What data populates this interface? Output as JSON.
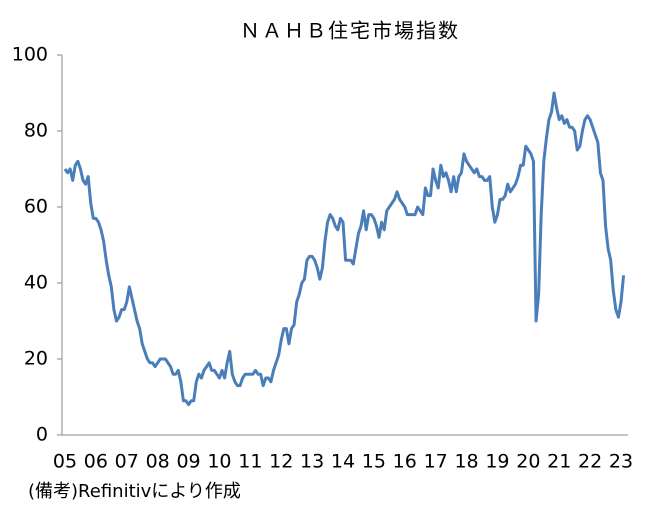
{
  "chart_data": {
    "type": "line",
    "title": "ＮＡＨＢ住宅市場指数",
    "note": "(備考)Refinitivにより作成",
    "color": "#4a7ebb",
    "ylim": [
      0,
      100
    ],
    "yticks": [
      0,
      20,
      40,
      60,
      80,
      100
    ],
    "categories": [
      "05",
      null,
      null,
      null,
      null,
      null,
      null,
      null,
      null,
      null,
      null,
      null,
      "06",
      null,
      null,
      null,
      null,
      null,
      null,
      null,
      null,
      null,
      null,
      null,
      "07",
      null,
      null,
      null,
      null,
      null,
      null,
      null,
      null,
      null,
      null,
      null,
      "08",
      null,
      null,
      null,
      null,
      null,
      null,
      null,
      null,
      null,
      null,
      null,
      "09",
      null,
      null,
      null,
      null,
      null,
      null,
      null,
      null,
      null,
      null,
      null,
      "10",
      null,
      null,
      null,
      null,
      null,
      null,
      null,
      null,
      null,
      null,
      null,
      "11",
      null,
      null,
      null,
      null,
      null,
      null,
      null,
      null,
      null,
      null,
      null,
      "12",
      null,
      null,
      null,
      null,
      null,
      null,
      null,
      null,
      null,
      null,
      null,
      "13",
      null,
      null,
      null,
      null,
      null,
      null,
      null,
      null,
      null,
      null,
      null,
      "14",
      null,
      null,
      null,
      null,
      null,
      null,
      null,
      null,
      null,
      null,
      null,
      "15",
      null,
      null,
      null,
      null,
      null,
      null,
      null,
      null,
      null,
      null,
      null,
      "16",
      null,
      null,
      null,
      null,
      null,
      null,
      null,
      null,
      null,
      null,
      null,
      "17",
      null,
      null,
      null,
      null,
      null,
      null,
      null,
      null,
      null,
      null,
      null,
      "18",
      null,
      null,
      null,
      null,
      null,
      null,
      null,
      null,
      null,
      null,
      null,
      "19",
      null,
      null,
      null,
      null,
      null,
      null,
      null,
      null,
      null,
      null,
      null,
      "20",
      null,
      null,
      null,
      null,
      null,
      null,
      null,
      null,
      null,
      null,
      null,
      "21",
      null,
      null,
      null,
      null,
      null,
      null,
      null,
      null,
      null,
      null,
      null,
      "22",
      null,
      null,
      null,
      null,
      null,
      null,
      null,
      null,
      null,
      null,
      null,
      "23",
      null
    ],
    "values": [
      70,
      69,
      70,
      67,
      71,
      72,
      70,
      67,
      66,
      68,
      61,
      57,
      57,
      56,
      54,
      51,
      46,
      42,
      39,
      33,
      30,
      31,
      33,
      33,
      35,
      39,
      36,
      33,
      30,
      28,
      24,
      22,
      20,
      19,
      19,
      18,
      19,
      20,
      20,
      20,
      19,
      18,
      16,
      16,
      17,
      14,
      9,
      9,
      8,
      9,
      9,
      14,
      16,
      15,
      17,
      18,
      19,
      17,
      17,
      16,
      15,
      17,
      15,
      19,
      22,
      16,
      14,
      13,
      13,
      15,
      16,
      16,
      16,
      16,
      17,
      16,
      16,
      13,
      15,
      15,
      14,
      17,
      19,
      21,
      25,
      28,
      28,
      24,
      28,
      29,
      35,
      37,
      40,
      41,
      46,
      47,
      47,
      46,
      44,
      41,
      44,
      51,
      56,
      58,
      57,
      55,
      54,
      57,
      56,
      46,
      46,
      46,
      45,
      49,
      53,
      55,
      59,
      54,
      58,
      58,
      57,
      55,
      52,
      56,
      54,
      59,
      60,
      61,
      62,
      64,
      62,
      61,
      60,
      58,
      58,
      58,
      58,
      60,
      59,
      58,
      65,
      63,
      63,
      70,
      67,
      65,
      71,
      68,
      69,
      67,
      64,
      68,
      64,
      68,
      69,
      74,
      72,
      71,
      70,
      69,
      70,
      68,
      68,
      67,
      67,
      68,
      60,
      56,
      58,
      62,
      62,
      63,
      66,
      64,
      65,
      66,
      68,
      71,
      71,
      76,
      75,
      74,
      72,
      30,
      37,
      58,
      72,
      78,
      83,
      85,
      90,
      86,
      83,
      84,
      82,
      83,
      81,
      81,
      80,
      75,
      76,
      80,
      83,
      84,
      83,
      81,
      79,
      77,
      69,
      67,
      55,
      49,
      46,
      38,
      33,
      31,
      35,
      42
    ]
  }
}
